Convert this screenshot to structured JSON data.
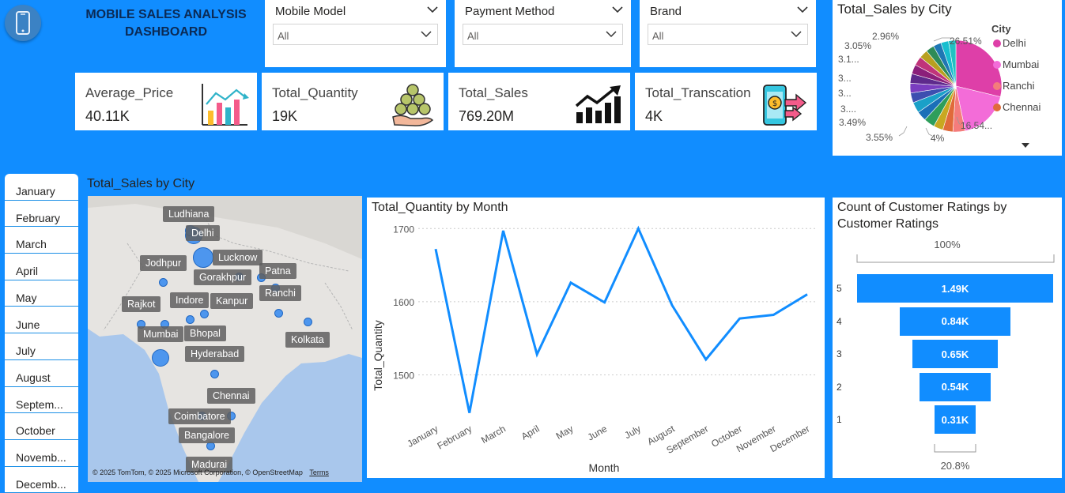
{
  "header": {
    "title_line1": "MOBILE SALES ANALYSIS",
    "title_line2": "DASHBOARD",
    "icon": "mobile-phone-icon"
  },
  "slicers": [
    {
      "label": "Mobile Model",
      "value": "All"
    },
    {
      "label": "Payment Method",
      "value": "All"
    },
    {
      "label": "Brand",
      "value": "All"
    }
  ],
  "kpis": [
    {
      "label": "Average_Price",
      "value": "40.11K",
      "icon": "bar-chart-icon"
    },
    {
      "label": "Total_Quantity",
      "value": "19K",
      "icon": "coins-hand-icon"
    },
    {
      "label": "Total_Sales",
      "value": "769.20M",
      "icon": "growth-chart-icon"
    },
    {
      "label": "Total_Transcation",
      "value": "4K",
      "icon": "phone-payment-icon"
    }
  ],
  "pie": {
    "title": "Total_Sales by City",
    "legend_title": "City",
    "legend": [
      {
        "name": "Delhi",
        "color": "#DE3FA8"
      },
      {
        "name": "Mumbai",
        "color": "#F36CD8"
      },
      {
        "name": "Ranchi",
        "color": "#F47C7C"
      },
      {
        "name": "Chennai",
        "color": "#E06A3A"
      }
    ],
    "labels": [
      "26.51%",
      "16.54...",
      "4%",
      "3.55%",
      "3.49%",
      "3....",
      "3...",
      "3...",
      "3.1...",
      "3.05%",
      "2.96%"
    ]
  },
  "map": {
    "title": "Total_Sales by City",
    "cities": [
      "Ludhiana",
      "Delhi",
      "Jodhpur",
      "Lucknow",
      "Patna",
      "Gorakhpur",
      "Indore",
      "Kanpur",
      "Ranchi",
      "Rajkot",
      "Mumbai",
      "Bhopal",
      "Kolkata",
      "Hyderabad",
      "Chennai",
      "Coimbatore",
      "Bangalore",
      "Madurai"
    ],
    "attribution": "© 2025 TomTom, © 2025 Microsoft Corporation, © OpenStreetMap",
    "terms": "Terms"
  },
  "months": [
    "January",
    "February",
    "March",
    "April",
    "May",
    "June",
    "July",
    "August",
    "Septem...",
    "October",
    "Novemb...",
    "Decemb..."
  ],
  "funnel": {
    "title_line1": "Count of Customer Ratings by",
    "title_line2": "Customer Ratings",
    "top_pct": "100%",
    "bottom_pct": "20.8%",
    "categories": [
      "5",
      "4",
      "3",
      "2",
      "1"
    ],
    "labels": [
      "1.49K",
      "0.84K",
      "0.65K",
      "0.54K",
      "0.31K"
    ],
    "values": [
      1490,
      840,
      650,
      540,
      310
    ]
  },
  "chart_data": {
    "type": "line",
    "title": "Total_Quantity by Month",
    "xlabel": "Month",
    "ylabel": "Total_Quantity",
    "categories": [
      "January",
      "February",
      "March",
      "April",
      "May",
      "June",
      "July",
      "August",
      "September",
      "October",
      "November",
      "December"
    ],
    "values": [
      1672,
      1448,
      1697,
      1528,
      1626,
      1599,
      1700,
      1595,
      1521,
      1577,
      1582,
      1610
    ],
    "yticks": [
      "1500",
      "1600",
      "1700"
    ],
    "ylim": [
      1440,
      1710
    ],
    "grid": true,
    "color": "#118DFF"
  }
}
